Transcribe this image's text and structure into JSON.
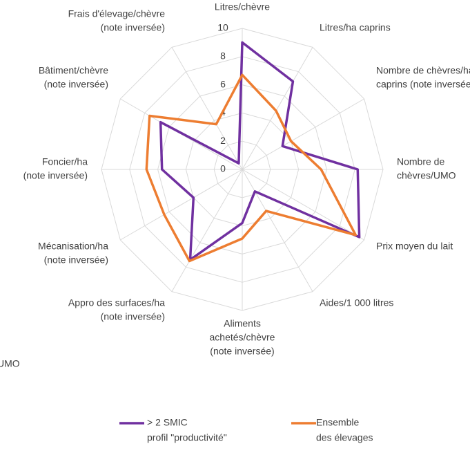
{
  "chart_data": {
    "type": "radar",
    "categories": [
      [
        "Litres/chèvre"
      ],
      [
        "Litres/ha caprins"
      ],
      [
        "Nombre de chèvres/ha",
        "caprins (note inversée)"
      ],
      [
        "Nombre de",
        "chèvres/UMO"
      ],
      [
        "Prix moyen du lait"
      ],
      [
        "Aides/1 000 litres"
      ],
      [
        "Aliments",
        "achetés/chèvre",
        "(note inversée)"
      ],
      [
        "Appro des surfaces/ha",
        "(note inversée)"
      ],
      [
        "Mécanisation/ha",
        "(note inversée)"
      ],
      [
        "Foncier/ha",
        "(note inversée)"
      ],
      [
        "Bâtiment/chèvre",
        "(note inversée)"
      ],
      [
        "Frais d'élevage/chèvre",
        "(note inversée)"
      ]
    ],
    "series": [
      {
        "name": [
          "> 2 SMIC",
          "profil \"productivité\""
        ],
        "color": "#7030a0",
        "values": [
          9.0,
          7.2,
          3.3,
          8.2,
          9.6,
          1.8,
          3.8,
          7.4,
          4.0,
          5.7,
          6.7,
          0.5
        ]
      },
      {
        "name": [
          "Ensemble",
          "des élevages"
        ],
        "color": "#ed7d31",
        "values": [
          6.7,
          4.8,
          4.0,
          5.6,
          9.3,
          3.4,
          4.9,
          7.5,
          6.4,
          6.8,
          7.6,
          3.7
        ]
      }
    ],
    "rlim": [
      0,
      10
    ],
    "rticks": [
      0,
      2,
      4,
      6,
      8,
      10
    ],
    "grid": true,
    "annotations": [
      "UMO"
    ]
  }
}
